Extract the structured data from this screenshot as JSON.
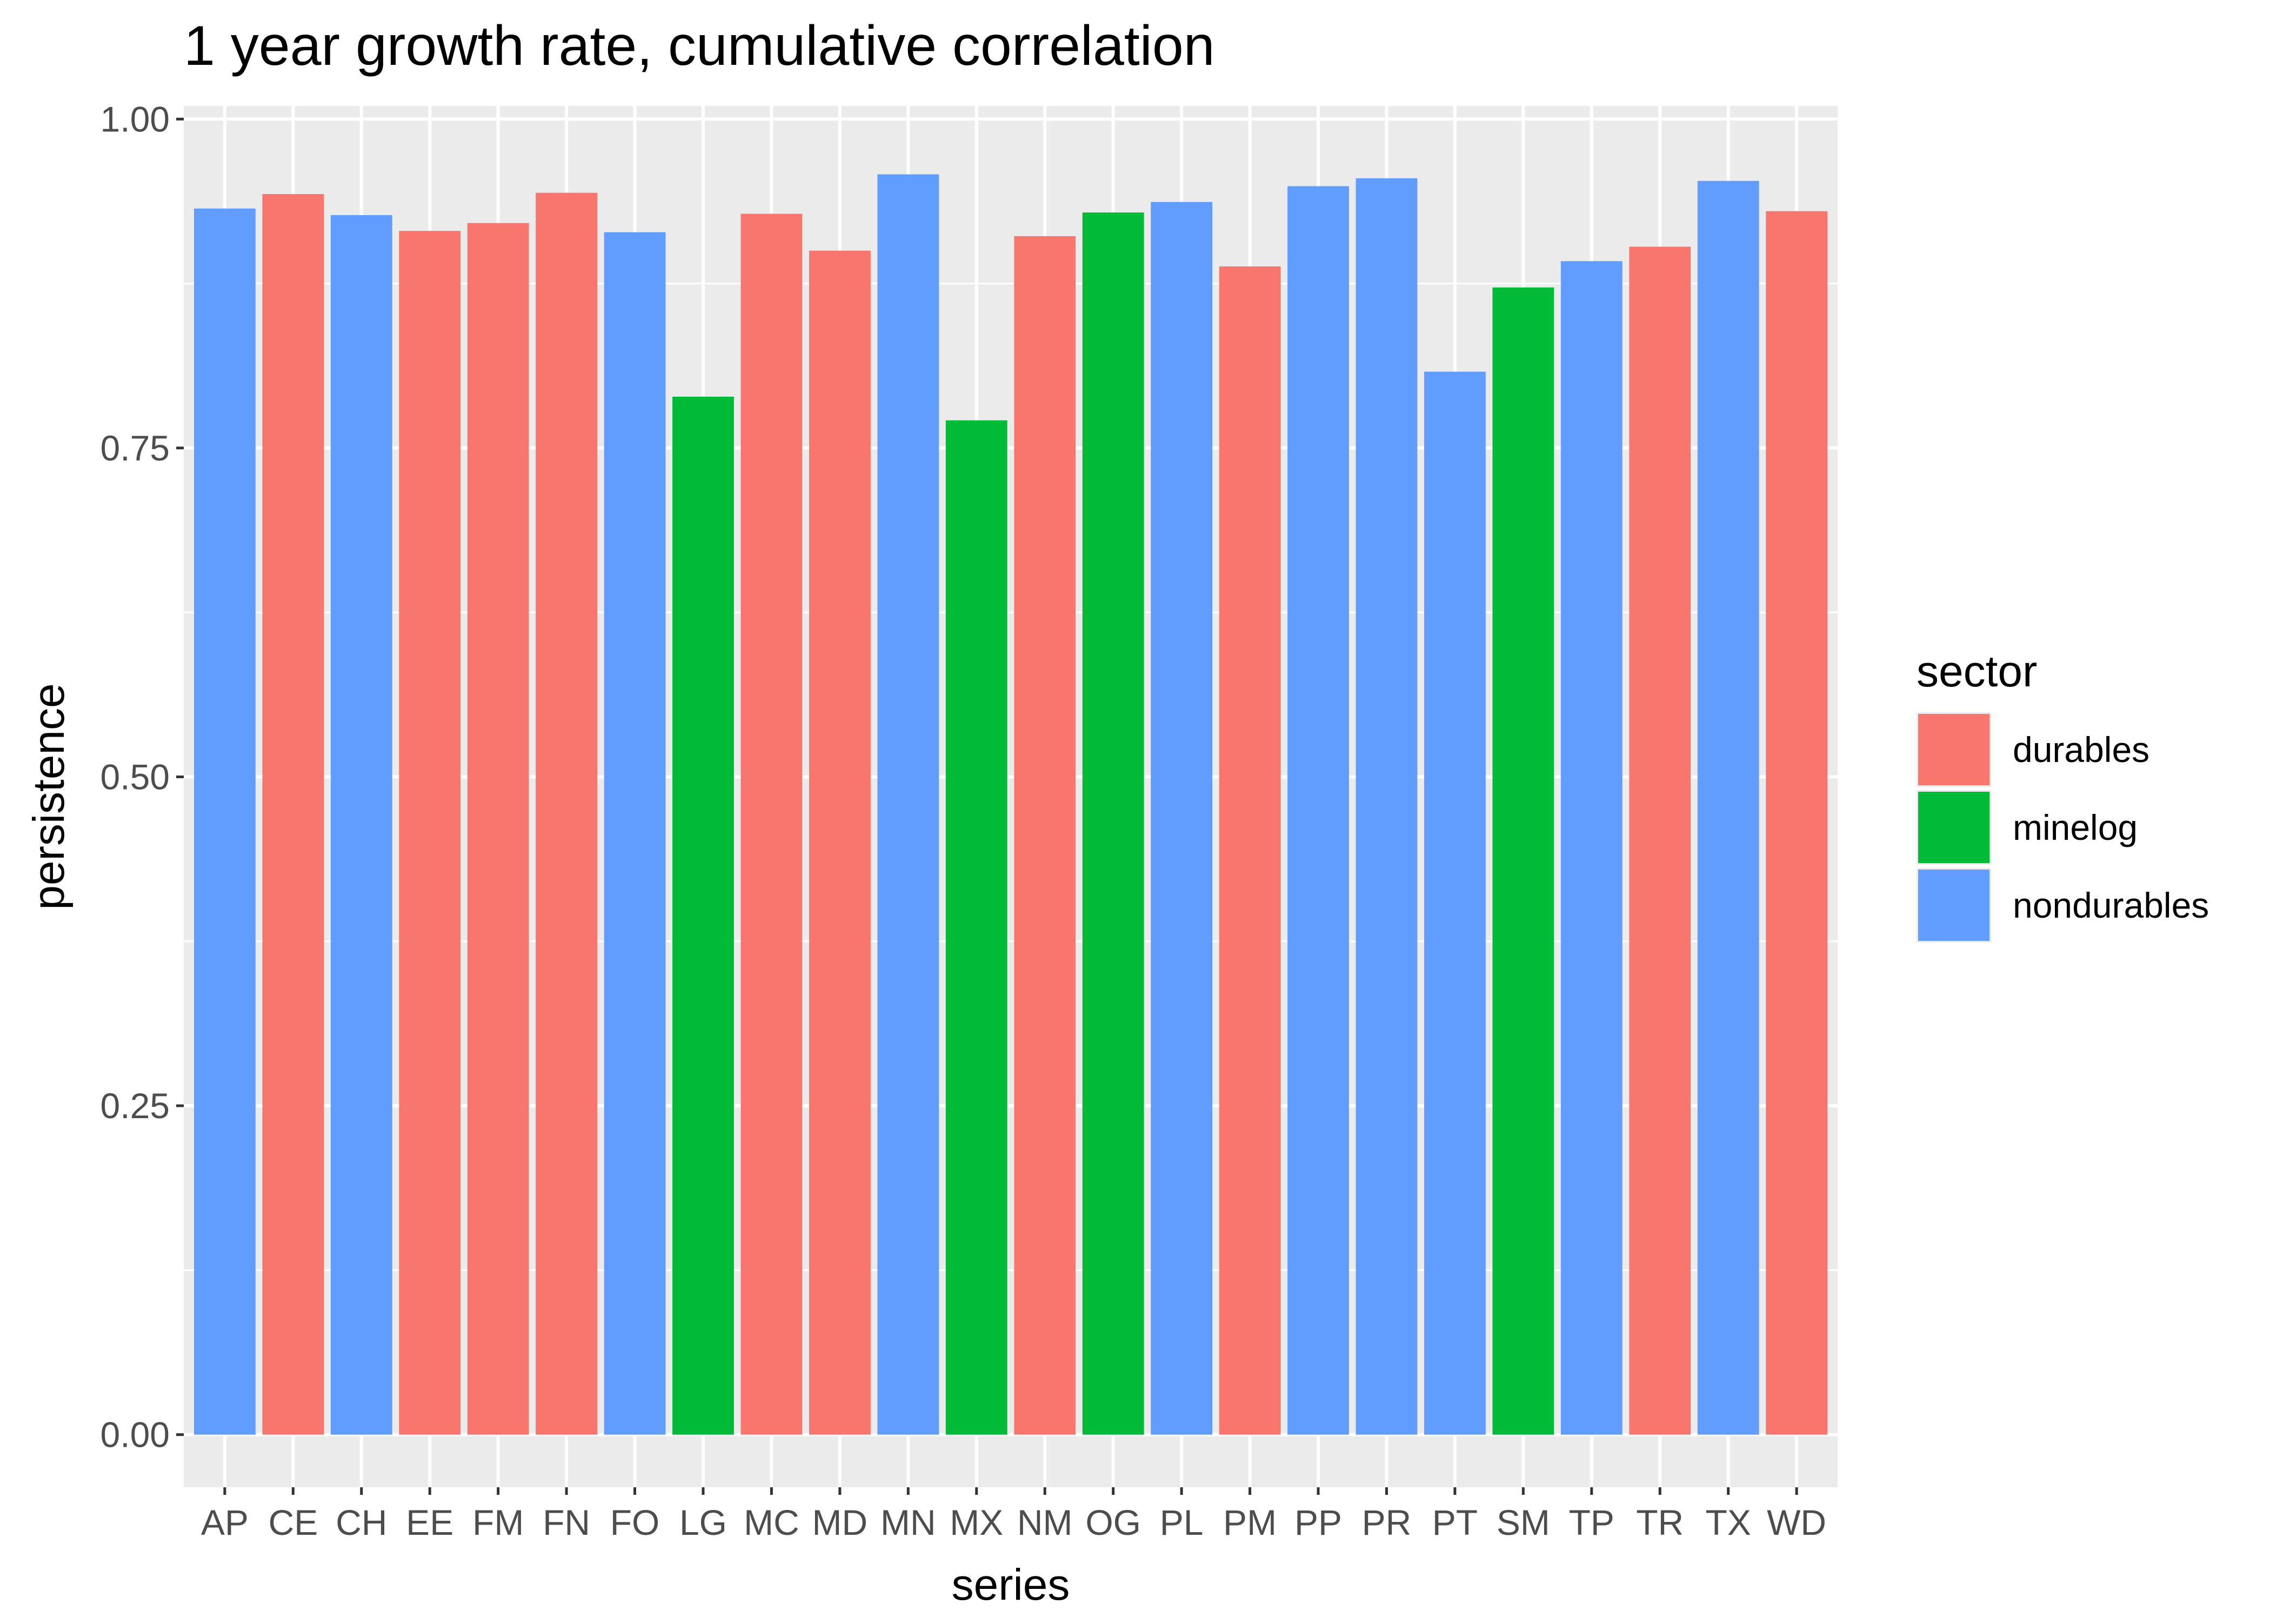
{
  "chart_data": {
    "type": "bar",
    "title": "1 year growth rate, cumulative correlation",
    "xlabel": "series",
    "ylabel": "persistence",
    "ylim": [
      -0.04,
      1.01
    ],
    "yticks": [
      "0.00",
      "0.25",
      "0.50",
      "0.75",
      "1.00"
    ],
    "ytick_values": [
      0,
      0.25,
      0.5,
      0.75,
      1.0
    ],
    "grid": true,
    "legend": {
      "title": "sector",
      "placement": "right",
      "entries": [
        {
          "name": "durables",
          "color": "#F8766D"
        },
        {
          "name": "minelog",
          "color": "#00BA38"
        },
        {
          "name": "nondurables",
          "color": "#619CFF"
        }
      ]
    },
    "categories": [
      "AP",
      "CE",
      "CH",
      "EE",
      "FM",
      "FN",
      "FO",
      "LG",
      "MC",
      "MD",
      "MN",
      "MX",
      "NM",
      "OG",
      "PL",
      "PM",
      "PP",
      "PR",
      "PT",
      "SM",
      "TP",
      "TR",
      "TX",
      "WD"
    ],
    "values": [
      0.932,
      0.943,
      0.927,
      0.915,
      0.921,
      0.944,
      0.914,
      0.789,
      0.928,
      0.9,
      0.958,
      0.771,
      0.911,
      0.929,
      0.937,
      0.888,
      0.949,
      0.955,
      0.808,
      0.872,
      0.892,
      0.903,
      0.953,
      0.93
    ],
    "sectors": [
      "nondurables",
      "durables",
      "nondurables",
      "durables",
      "durables",
      "durables",
      "nondurables",
      "minelog",
      "durables",
      "durables",
      "nondurables",
      "minelog",
      "durables",
      "minelog",
      "nondurables",
      "durables",
      "nondurables",
      "nondurables",
      "nondurables",
      "minelog",
      "nondurables",
      "durables",
      "nondurables",
      "durables"
    ]
  }
}
